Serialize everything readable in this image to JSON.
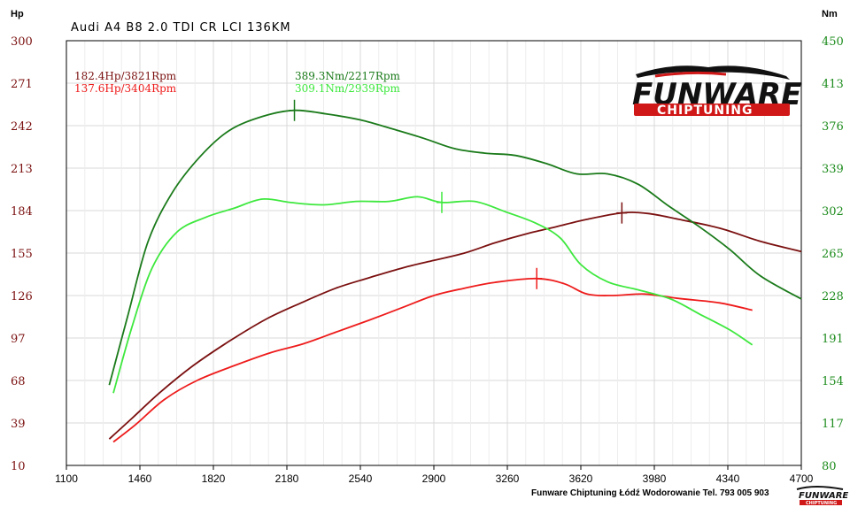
{
  "chart_data": {
    "type": "line",
    "title": "Audi A4 B8 2.0 TDI CR LCI 136KM",
    "left_axis": {
      "label": "Hp",
      "ylim": [
        10,
        300
      ],
      "ticks": [
        "10",
        "39",
        "68",
        "97",
        "126",
        "155",
        "184",
        "213",
        "242",
        "271",
        "300"
      ]
    },
    "right_axis": {
      "label": "Nm",
      "ylim": [
        80,
        450
      ],
      "ticks": [
        "80",
        "117",
        "154",
        "191",
        "228",
        "265",
        "302",
        "339",
        "376",
        "413",
        "450"
      ]
    },
    "x_axis": {
      "label": "",
      "xlim": [
        1100,
        4700
      ],
      "ticks": [
        "1100",
        "1460",
        "1820",
        "2180",
        "2540",
        "2900",
        "3260",
        "3620",
        "3980",
        "4340",
        "4700"
      ]
    },
    "grid": true,
    "series": [
      {
        "axis": "left",
        "color": "#7b1010",
        "x": [
          1310,
          1420,
          1560,
          1720,
          1900,
          2080,
          2250,
          2420,
          2580,
          2750,
          2900,
          3050,
          3200,
          3350,
          3500,
          3650,
          3821,
          3950,
          4100,
          4300,
          4500,
          4700
        ],
        "y": [
          28,
          42,
          60,
          78,
          95,
          110,
          121,
          131,
          138,
          145,
          150,
          155,
          162,
          168,
          173,
          178,
          182.4,
          182,
          178,
          172,
          163,
          156
        ]
      },
      {
        "axis": "left",
        "color": "#ee1b1b",
        "x": [
          1330,
          1440,
          1580,
          1740,
          1920,
          2100,
          2260,
          2420,
          2580,
          2750,
          2900,
          3050,
          3200,
          3404,
          3540,
          3650,
          3780,
          3930,
          4100,
          4300,
          4460
        ],
        "y": [
          26,
          38,
          55,
          68,
          78,
          87,
          93,
          101,
          109,
          118,
          126,
          131,
          135,
          137.6,
          134,
          127,
          126,
          127,
          124,
          121,
          116
        ]
      },
      {
        "axis": "right",
        "color": "#1a7a1a",
        "x": [
          1310,
          1400,
          1500,
          1620,
          1760,
          1900,
          2060,
          2217,
          2380,
          2540,
          2700,
          2850,
          3000,
          3150,
          3300,
          3450,
          3600,
          3750,
          3900,
          4050,
          4200,
          4350,
          4500,
          4700
        ],
        "y": [
          150,
          210,
          275,
          318,
          350,
          372,
          384,
          389.3,
          386,
          381,
          373,
          365,
          356,
          352,
          350,
          343,
          334,
          334,
          325,
          306,
          288,
          268,
          245,
          225
        ]
      },
      {
        "axis": "right",
        "color": "#3ee83e",
        "x": [
          1330,
          1420,
          1520,
          1640,
          1780,
          1920,
          2060,
          2200,
          2360,
          2520,
          2680,
          2820,
          2939,
          3100,
          3250,
          3400,
          3520,
          3620,
          3750,
          3900,
          4060,
          4200,
          4350,
          4460
        ],
        "y": [
          143,
          200,
          252,
          283,
          296,
          304,
          312,
          309,
          307,
          310,
          310,
          314,
          309.1,
          310,
          301,
          291,
          278,
          255,
          240,
          233,
          225,
          212,
          198,
          185
        ]
      }
    ],
    "annotations": [
      {
        "text": "182.4Hp/3821Rpm",
        "color": "#7b1010",
        "x": 3821,
        "y": 182.4,
        "axis": "left"
      },
      {
        "text": "137.6Hp/3404Rpm",
        "color": "#ee1b1b",
        "x": 3404,
        "y": 137.6,
        "axis": "left"
      },
      {
        "text": "389.3Nm/2217Rpm",
        "color": "#1a7a1a",
        "x": 2217,
        "y": 389.3,
        "axis": "right"
      },
      {
        "text": "309.1Nm/2939Rpm",
        "color": "#3ee83e",
        "x": 2939,
        "y": 309.1,
        "axis": "right"
      }
    ]
  },
  "logo": {
    "main": "FUNWARE",
    "sub": "CHIPTUNING"
  },
  "footer": "Funware Chiptuning Łódź Wodorowanie Tel. 793 005 903"
}
